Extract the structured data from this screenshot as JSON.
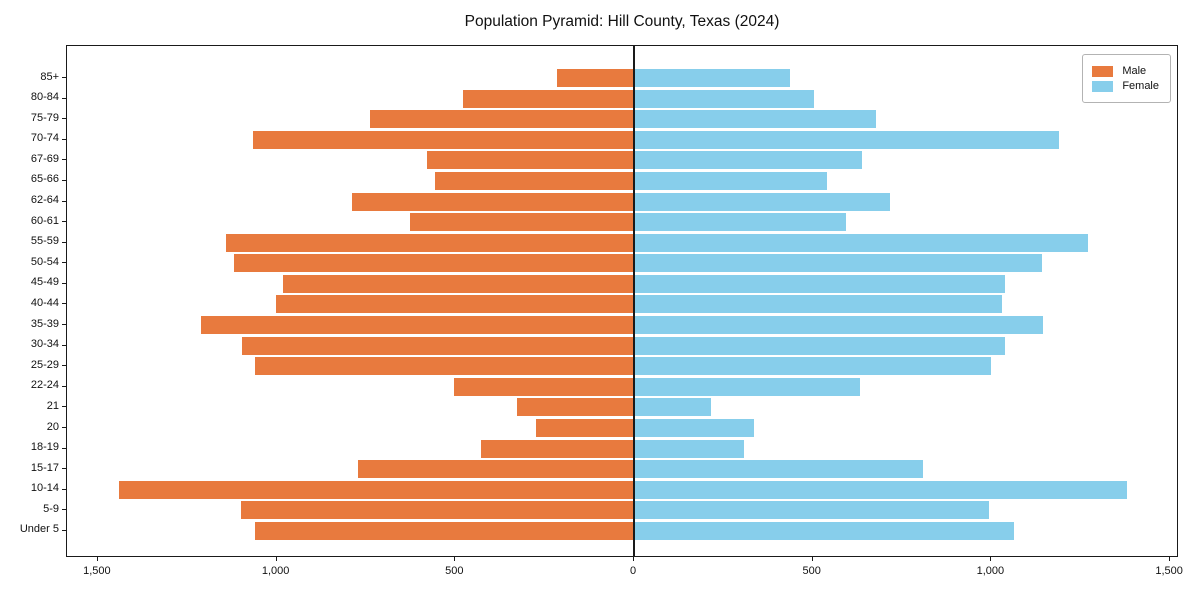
{
  "title": "Population Pyramid: Hill County, Texas (2024)",
  "legend": {
    "male_label": "Male",
    "female_label": "Female"
  },
  "colors": {
    "male": "#E87A3E",
    "female": "#87CEEB",
    "axis": "#1a1a1a"
  },
  "chart_data": {
    "type": "bar",
    "subtype": "population-pyramid",
    "title": "Population Pyramid: Hill County, Texas (2024)",
    "categories": [
      "85+",
      "80-84",
      "75-79",
      "70-74",
      "67-69",
      "65-66",
      "62-64",
      "60-61",
      "55-59",
      "50-54",
      "45-49",
      "40-44",
      "35-39",
      "30-34",
      "25-29",
      "22-24",
      "21",
      "20",
      "18-19",
      "15-17",
      "10-14",
      "5-9",
      "Under 5"
    ],
    "series": [
      {
        "name": "Male",
        "side": "left",
        "color": "#E87A3E",
        "values": [
          215,
          478,
          740,
          1067,
          578,
          556,
          788,
          628,
          1142,
          1120,
          983,
          1003,
          1212,
          1098,
          1061,
          505,
          327,
          274,
          427,
          771,
          1441,
          1101,
          1061
        ]
      },
      {
        "name": "Female",
        "side": "right",
        "color": "#87CEEB",
        "values": [
          436,
          503,
          676,
          1190,
          637,
          539,
          715,
          592,
          1271,
          1142,
          1039,
          1030,
          1145,
          1039,
          1000,
          631,
          215,
          335,
          307,
          810,
          1380,
          992,
          1064
        ]
      }
    ],
    "x_tick_values": [
      -1500,
      -1000,
      -500,
      0,
      500,
      1000,
      1500
    ],
    "x_tick_labels": [
      "1,500",
      "1,000",
      "500",
      "0",
      "500",
      "1,000",
      "1,500"
    ],
    "xlim": [
      -1587,
      1525
    ],
    "grid": false,
    "legend_position": "upper right"
  }
}
